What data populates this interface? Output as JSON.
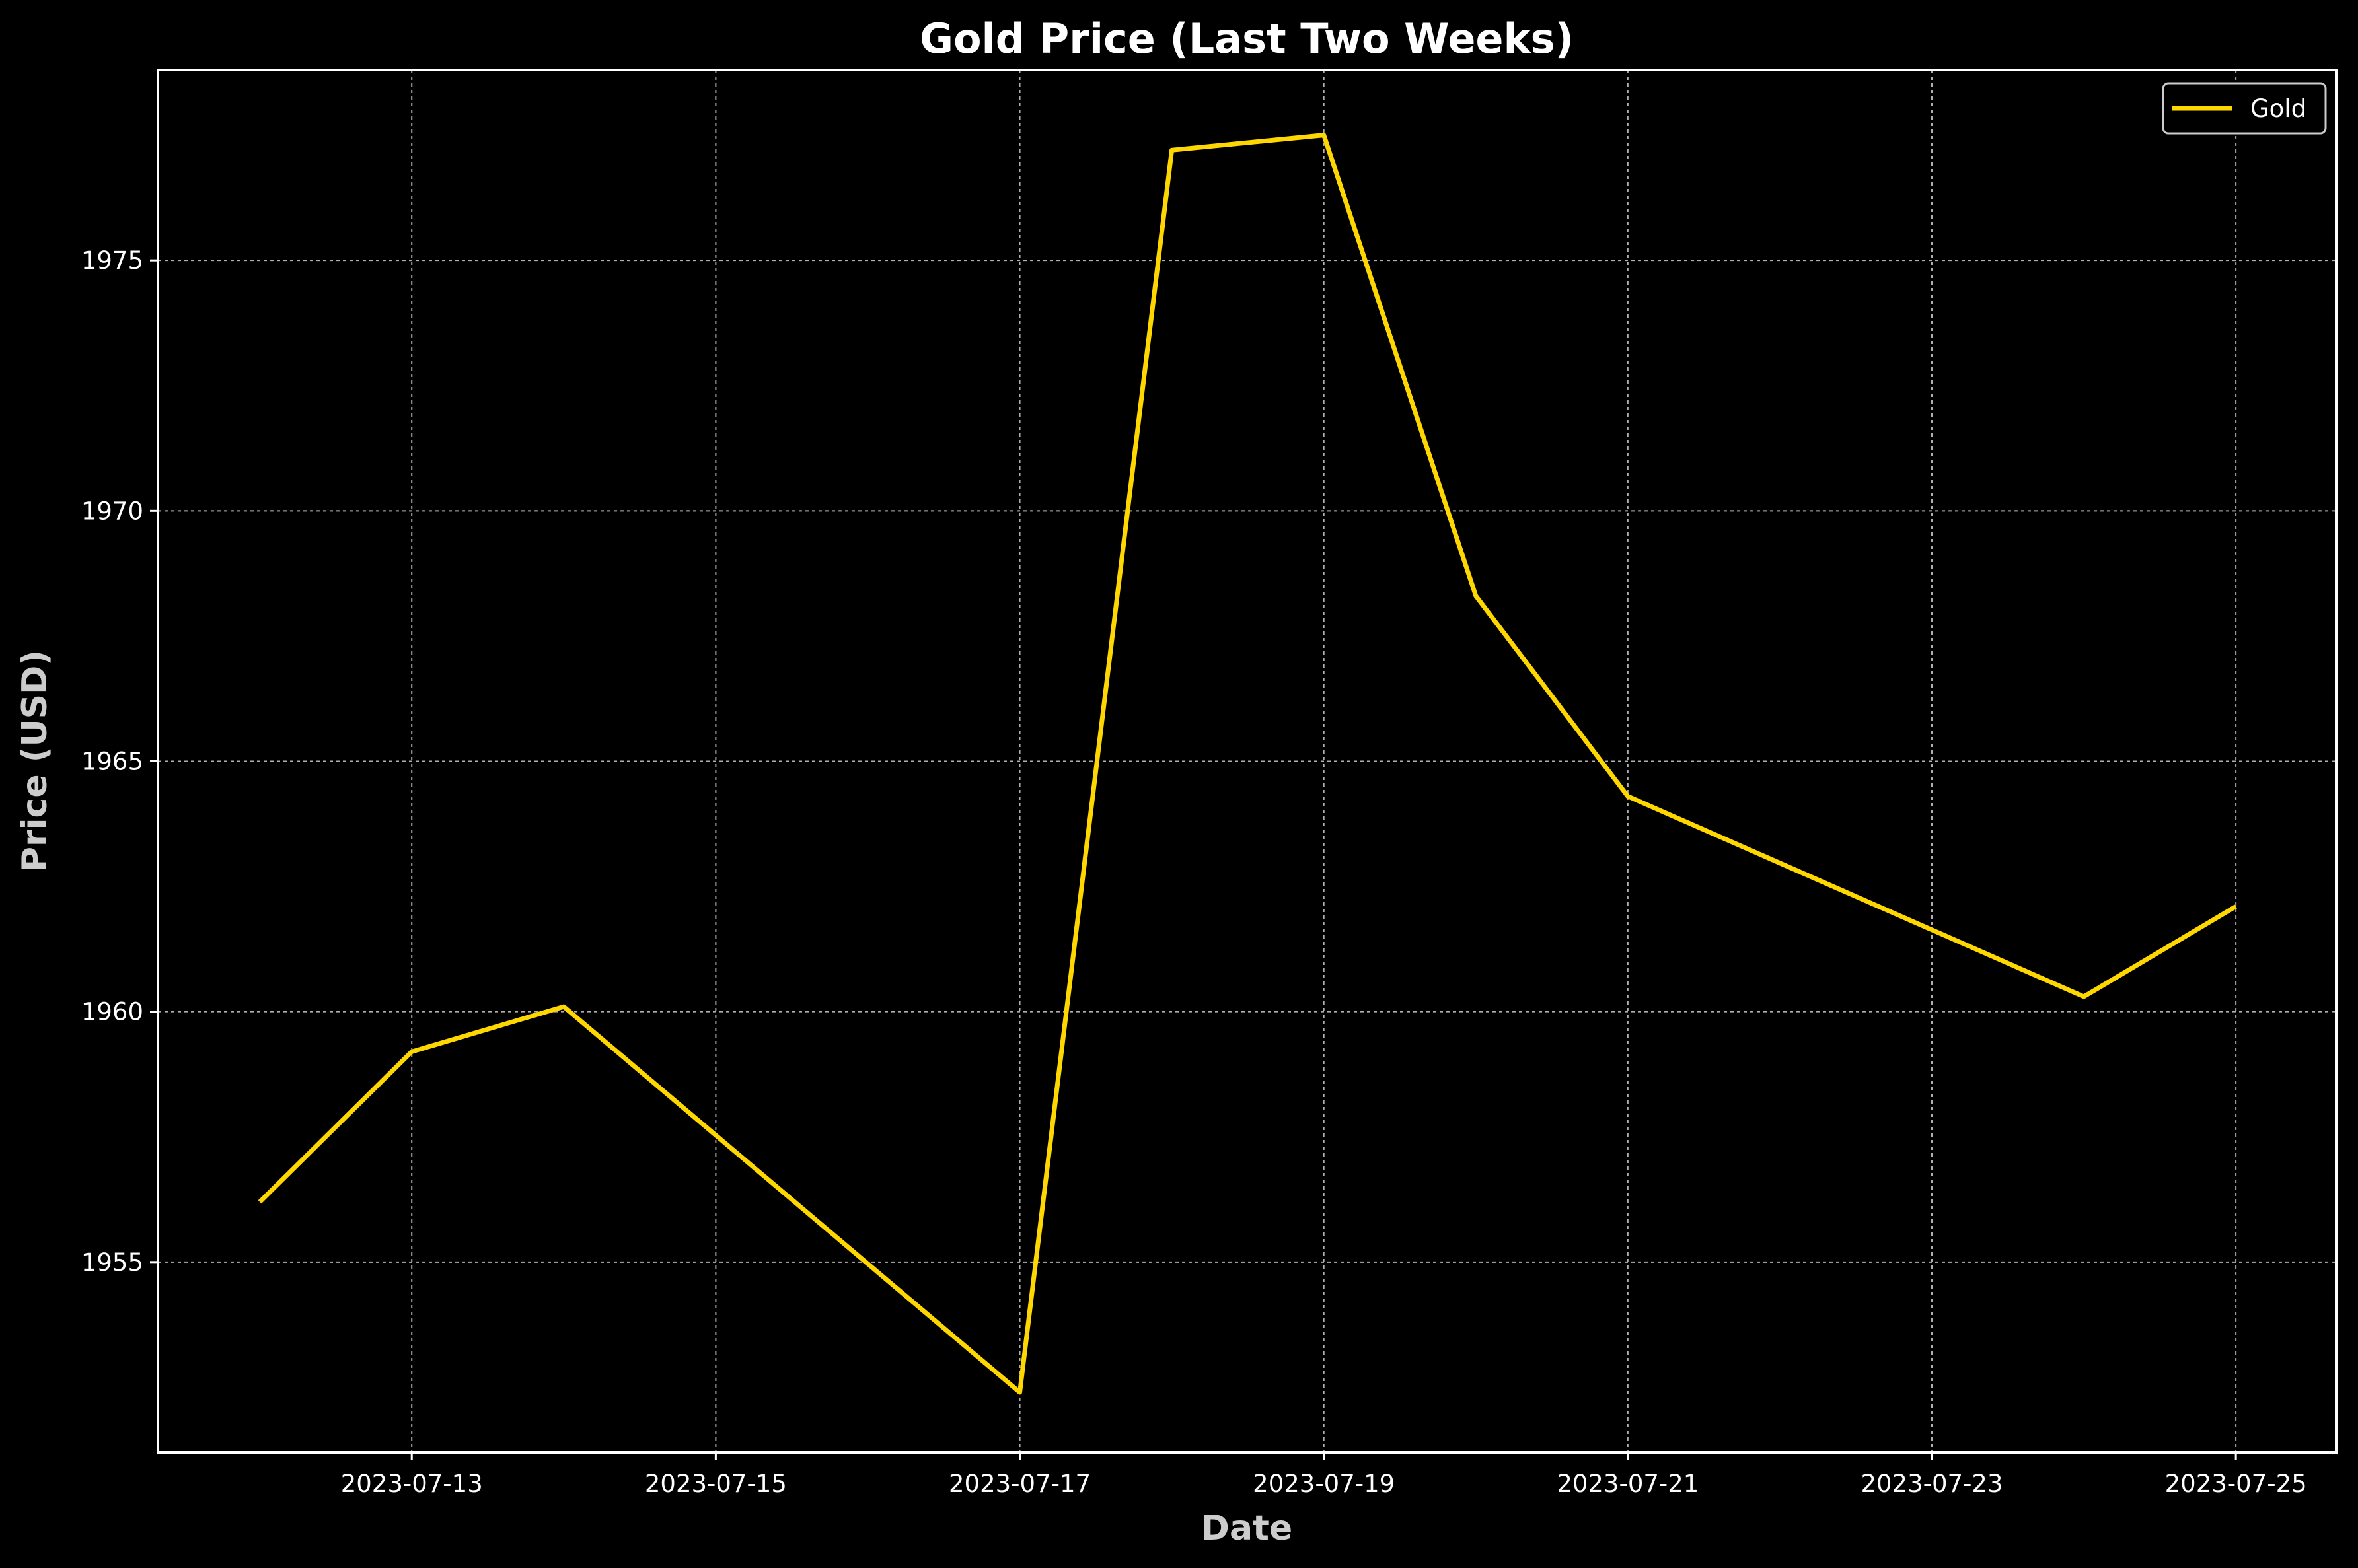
{
  "chart_data": {
    "type": "line",
    "title": "Gold Price (Last Two Weeks)",
    "xlabel": "Date",
    "ylabel": "Price (USD)",
    "x": [
      "2023-07-12",
      "2023-07-13",
      "2023-07-14",
      "2023-07-17",
      "2023-07-18",
      "2023-07-19",
      "2023-07-20",
      "2023-07-21",
      "2023-07-24",
      "2023-07-25"
    ],
    "series": [
      {
        "name": "Gold",
        "color": "#FFD700",
        "values": [
          1956.2,
          1959.2,
          1960.1,
          1952.4,
          1977.2,
          1977.5,
          1968.3,
          1964.3,
          1960.3,
          1962.1
        ]
      }
    ],
    "xlim": [
      "2023-07-11.33",
      "2023-07-25.66"
    ],
    "ylim": [
      1951.2,
      1978.8
    ],
    "xticks": [
      "2023-07-13",
      "2023-07-15",
      "2023-07-17",
      "2023-07-19",
      "2023-07-21",
      "2023-07-23",
      "2023-07-25"
    ],
    "yticks": [
      1955,
      1960,
      1965,
      1970,
      1975
    ],
    "grid": true,
    "legend": "top-right",
    "background": "#000000",
    "axes_color": "#ffffff"
  }
}
